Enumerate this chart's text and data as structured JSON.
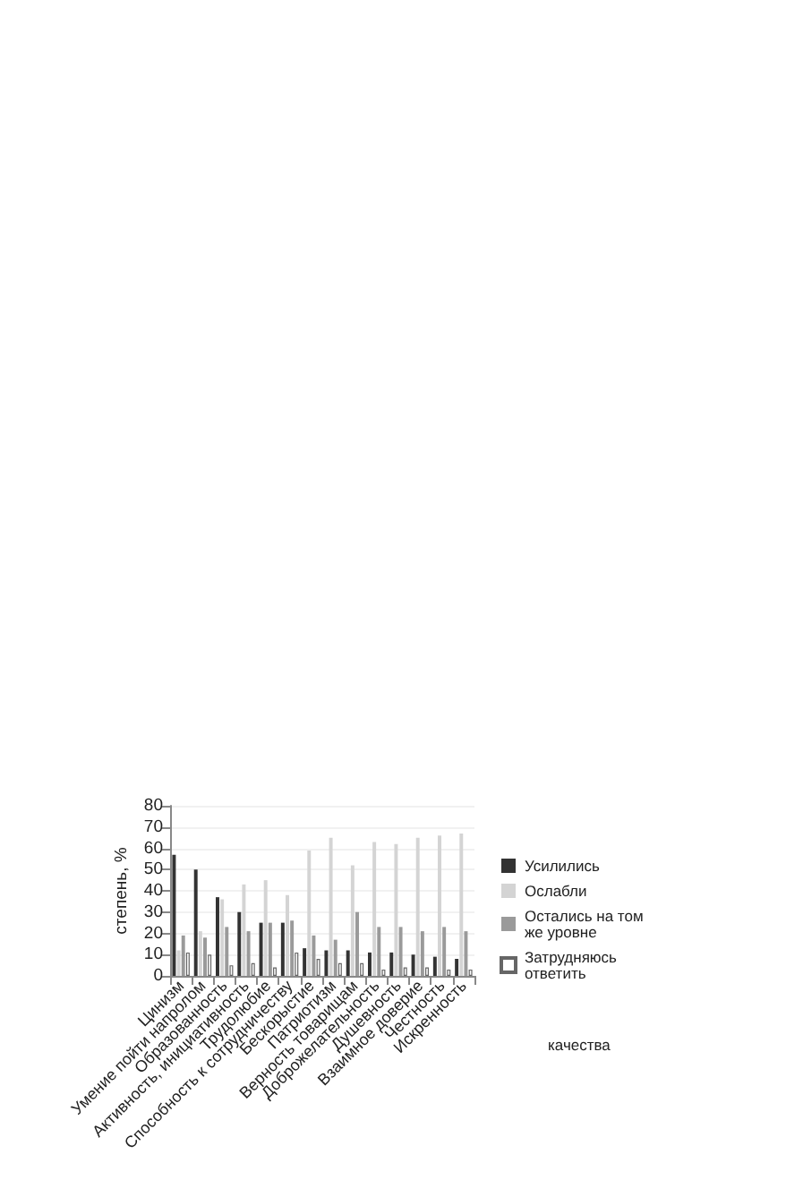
{
  "chart_data": {
    "type": "bar",
    "ylabel": "степень, %",
    "xlabel": "качества",
    "categories": [
      "Цинизм",
      "Умение пойти напролом",
      "Образованность",
      "Активность, инициативность",
      "Трудолюбие",
      "Способность к сотрудничеству",
      "Бескорыстие",
      "Патриотизм",
      "Верность товарищам",
      "Доброжелательность",
      "Душевность",
      "Взаимное доверие",
      "Честность",
      "Искренность"
    ],
    "series": [
      {
        "name": "Усилились",
        "color": "#333333",
        "values": [
          57,
          50,
          37,
          30,
          25,
          25,
          13,
          12,
          12,
          11,
          11,
          10,
          9,
          8
        ]
      },
      {
        "name": "Ослабли",
        "color": "#d4d4d4",
        "values": [
          12,
          21,
          36,
          43,
          45,
          38,
          59,
          65,
          52,
          63,
          62,
          65,
          66,
          67
        ]
      },
      {
        "name": "Остались на том же уровне",
        "color": "#9a9a9a",
        "values": [
          19,
          18,
          23,
          21,
          25,
          26,
          19,
          17,
          30,
          23,
          23,
          21,
          23,
          21
        ]
      },
      {
        "name": "Затрудняюсь ответить",
        "color": "#ffffff",
        "values": [
          11,
          10,
          5,
          6,
          4,
          11,
          8,
          6,
          6,
          3,
          4,
          4,
          3,
          3
        ]
      }
    ],
    "ylim": [
      0,
      80
    ],
    "yticks": [
      0,
      10,
      20,
      30,
      40,
      50,
      60,
      70,
      80
    ],
    "grid": "y",
    "legend": "right"
  }
}
